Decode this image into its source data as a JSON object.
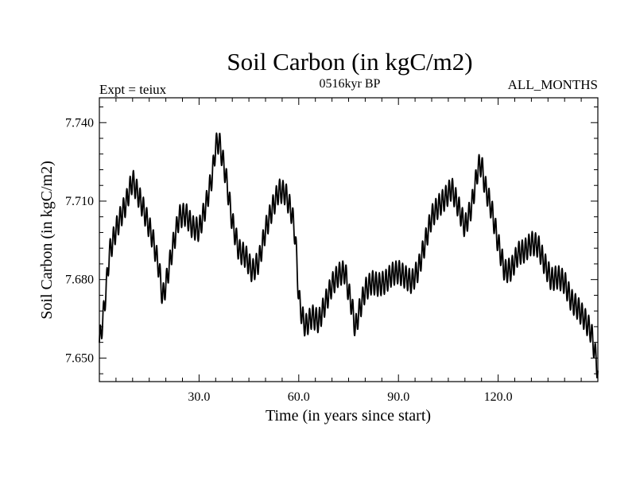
{
  "chart_data": {
    "type": "line",
    "title": "Soil Carbon (in kgC/m2)",
    "subtitle": "0516kyr BP",
    "left_annotation": "Expt = teiux",
    "right_annotation": "ALL_MONTHS",
    "xlabel": "Time (in years since start)",
    "ylabel": "Soil Carbon (in kgC/m2)",
    "xlim": [
      0,
      150
    ],
    "ylim": [
      7.641,
      7.7495
    ],
    "x_ticks": [
      30,
      60,
      90,
      120
    ],
    "x_tick_labels": [
      "30.0",
      "60.0",
      "90.0",
      "120.0"
    ],
    "y_ticks": [
      7.65,
      7.68,
      7.71,
      7.74
    ],
    "y_tick_labels": [
      "7.650",
      "7.680",
      "7.710",
      "7.740"
    ],
    "grid": false,
    "series": [
      {
        "name": "Soil Carbon",
        "color": "#000000",
        "oscillation_period_years": 1,
        "oscillation_amplitude": 0.0045,
        "envelope_x": [
          0,
          1,
          2,
          3,
          5,
          7,
          8,
          9,
          10,
          13,
          16,
          18,
          19,
          20,
          22,
          24,
          26,
          28,
          30,
          32,
          34,
          35,
          36,
          38,
          40,
          42,
          44,
          46,
          48,
          50,
          52,
          54,
          56,
          58,
          59,
          60,
          61,
          62,
          64,
          66,
          68,
          70,
          72,
          74,
          75,
          76,
          77,
          78,
          80,
          82,
          84,
          86,
          88,
          90,
          92,
          94,
          96,
          98,
          100,
          102,
          104,
          106,
          108,
          110,
          112,
          114,
          115,
          116,
          118,
          120,
          122,
          124,
          126,
          128,
          130,
          132,
          134,
          136,
          138,
          140,
          142,
          144,
          146,
          148,
          149,
          150
        ],
        "envelope_y": [
          7.656,
          7.664,
          7.676,
          7.69,
          7.699,
          7.706,
          7.709,
          7.714,
          7.718,
          7.708,
          7.696,
          7.684,
          7.673,
          7.678,
          7.692,
          7.704,
          7.705,
          7.7,
          7.699,
          7.708,
          7.72,
          7.731,
          7.733,
          7.72,
          7.702,
          7.691,
          7.689,
          7.683,
          7.687,
          7.699,
          7.707,
          7.714,
          7.713,
          7.705,
          7.696,
          7.673,
          7.666,
          7.662,
          7.666,
          7.664,
          7.671,
          7.678,
          7.682,
          7.683,
          7.675,
          7.67,
          7.661,
          7.667,
          7.676,
          7.679,
          7.678,
          7.679,
          7.682,
          7.683,
          7.681,
          7.679,
          7.684,
          7.694,
          7.704,
          7.708,
          7.711,
          7.715,
          7.708,
          7.7,
          7.708,
          7.723,
          7.724,
          7.716,
          7.707,
          7.694,
          7.683,
          7.684,
          7.69,
          7.691,
          7.694,
          7.693,
          7.686,
          7.68,
          7.681,
          7.679,
          7.672,
          7.669,
          7.665,
          7.66,
          7.653,
          7.645
        ]
      }
    ]
  }
}
